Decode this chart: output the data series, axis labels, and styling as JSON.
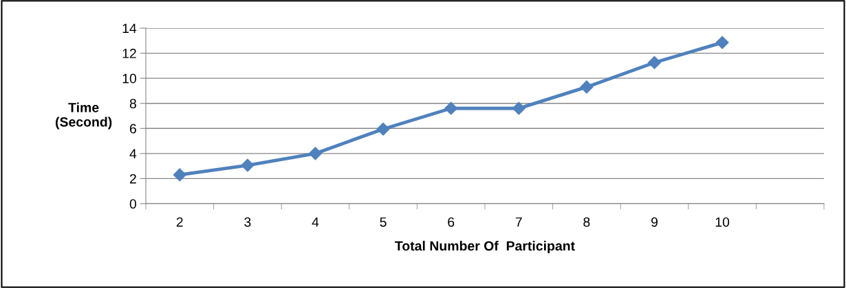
{
  "chart_data": {
    "type": "line",
    "xlabel": "Total Number Of  Participant",
    "ylabel": "Time\n(Second)",
    "categories": [
      "2",
      "3",
      "4",
      "5",
      "6",
      "7",
      "8",
      "9",
      "10",
      null
    ],
    "series": [
      {
        "color": "#4f81bd",
        "values": [
          2.3,
          3.06,
          4.0,
          5.95,
          7.6,
          7.6,
          9.3,
          11.25,
          12.85,
          null
        ]
      }
    ],
    "ylim": [
      0,
      14
    ],
    "yticks": [
      0,
      2,
      4,
      6,
      8,
      10,
      12,
      14
    ],
    "grid": "y",
    "marker": "diamond",
    "line_style": "solid",
    "legend": false
  }
}
